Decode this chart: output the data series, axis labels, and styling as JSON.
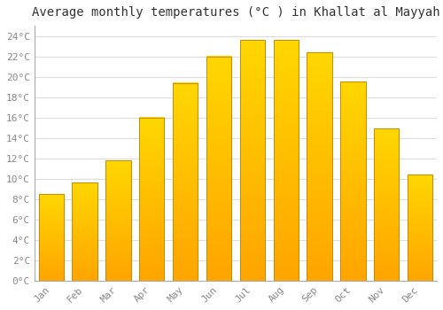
{
  "title": "Average monthly temperatures (°C ) in Khallat al Mayyah",
  "months": [
    "Jan",
    "Feb",
    "Mar",
    "Apr",
    "May",
    "Jun",
    "Jul",
    "Aug",
    "Sep",
    "Oct",
    "Nov",
    "Dec"
  ],
  "values": [
    8.5,
    9.6,
    11.8,
    16.0,
    19.4,
    22.0,
    23.6,
    23.6,
    22.4,
    19.5,
    14.9,
    10.4
  ],
  "bar_color_top": "#FFD700",
  "bar_color_bottom": "#FFA500",
  "bar_edge_color": "#CC8800",
  "background_color": "#FFFFFF",
  "plot_bg_color": "#FFFFFF",
  "grid_color": "#DDDDDD",
  "ylim": [
    0,
    25
  ],
  "ytick_step": 2,
  "title_fontsize": 10,
  "tick_fontsize": 8,
  "font_family": "monospace",
  "tick_color": "#888888",
  "title_color": "#333333"
}
